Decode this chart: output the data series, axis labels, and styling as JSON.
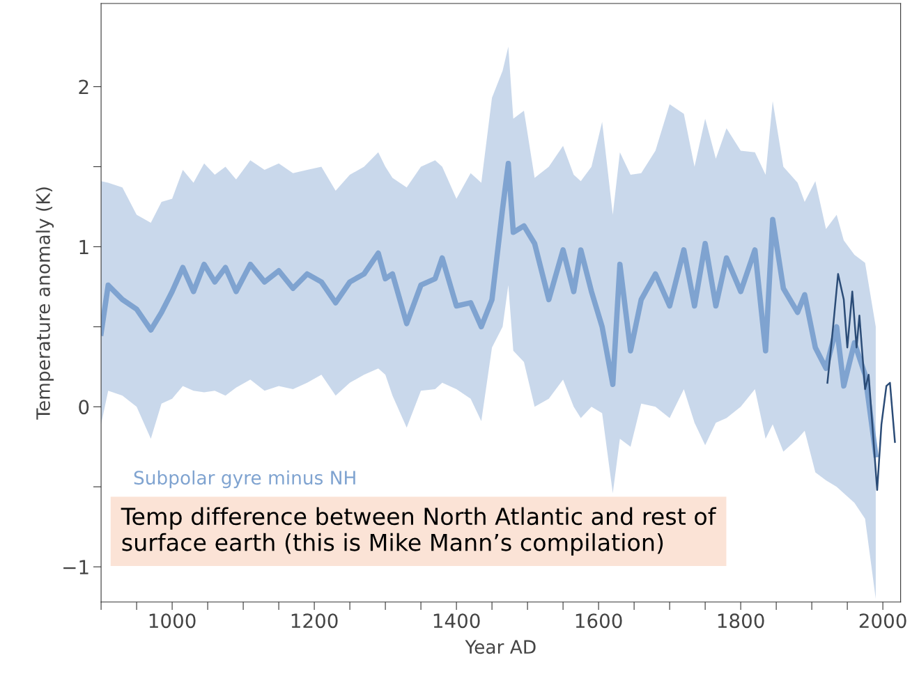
{
  "chart_data": {
    "type": "line",
    "xlabel": "Year AD",
    "ylabel": "Temperature anomaly (K)",
    "xlim": [
      900,
      2025
    ],
    "ylim": [
      -1.22,
      2.52
    ],
    "xticks": [
      {
        "value": 900,
        "label": null
      },
      {
        "value": 950,
        "label": null
      },
      1000,
      {
        "value": 1050,
        "label": null
      },
      {
        "value": 1100,
        "label": null
      },
      {
        "value": 1150,
        "label": null
      },
      1200,
      {
        "value": 1250,
        "label": null
      },
      {
        "value": 1300,
        "label": null
      },
      {
        "value": 1350,
        "label": null
      },
      1400,
      {
        "value": 1450,
        "label": null
      },
      {
        "value": 1500,
        "label": null
      },
      {
        "value": 1550,
        "label": null
      },
      1600,
      {
        "value": 1650,
        "label": null
      },
      {
        "value": 1700,
        "label": null
      },
      {
        "value": 1750,
        "label": null
      },
      1800,
      {
        "value": 1850,
        "label": null
      },
      {
        "value": 1900,
        "label": null
      },
      {
        "value": 1950,
        "label": null
      },
      2000
    ],
    "yticks": [
      {
        "value": -1,
        "label": "−1"
      },
      {
        "value": -0.5,
        "label": null
      },
      0,
      {
        "value": 0.5,
        "label": null
      },
      1,
      {
        "value": 1.5,
        "label": null
      },
      2
    ],
    "grid": false,
    "legend": false,
    "annotations": [
      "Temp difference between North Atlantic and rest of\nsurface earth (this is Mike Mann’s compilation)"
    ],
    "series": [
      {
        "name": "Subpolar gyre minus NH",
        "color": "#7fa3d0",
        "x": [
          900,
          910,
          930,
          950,
          970,
          985,
          1000,
          1015,
          1030,
          1045,
          1060,
          1075,
          1090,
          1110,
          1130,
          1150,
          1170,
          1190,
          1210,
          1230,
          1250,
          1270,
          1290,
          1300,
          1310,
          1330,
          1350,
          1370,
          1380,
          1400,
          1420,
          1435,
          1450,
          1465,
          1473,
          1480,
          1495,
          1510,
          1530,
          1550,
          1565,
          1575,
          1590,
          1605,
          1620,
          1630,
          1645,
          1660,
          1680,
          1700,
          1720,
          1735,
          1750,
          1765,
          1780,
          1800,
          1820,
          1835,
          1845,
          1860,
          1880,
          1890,
          1905,
          1920,
          1935,
          1945,
          1960,
          1975,
          1990
        ],
        "values": [
          0.46,
          0.76,
          0.67,
          0.61,
          0.48,
          0.59,
          0.72,
          0.87,
          0.72,
          0.89,
          0.78,
          0.87,
          0.72,
          0.89,
          0.78,
          0.85,
          0.74,
          0.83,
          0.78,
          0.65,
          0.78,
          0.83,
          0.96,
          0.8,
          0.83,
          0.52,
          0.76,
          0.8,
          0.93,
          0.63,
          0.65,
          0.5,
          0.67,
          1.24,
          1.52,
          1.09,
          1.13,
          1.02,
          0.67,
          0.98,
          0.72,
          0.98,
          0.72,
          0.5,
          0.14,
          0.89,
          0.35,
          0.67,
          0.83,
          0.63,
          0.98,
          0.63,
          1.02,
          0.63,
          0.93,
          0.72,
          0.98,
          0.35,
          1.17,
          0.74,
          0.59,
          0.7,
          0.37,
          0.24,
          0.5,
          0.13,
          0.4,
          0.2,
          -0.3
        ],
        "upper": [
          1.41,
          1.4,
          1.37,
          1.2,
          1.15,
          1.28,
          1.3,
          1.48,
          1.4,
          1.52,
          1.45,
          1.5,
          1.42,
          1.54,
          1.48,
          1.52,
          1.46,
          1.48,
          1.5,
          1.35,
          1.45,
          1.5,
          1.59,
          1.5,
          1.43,
          1.37,
          1.5,
          1.54,
          1.5,
          1.3,
          1.46,
          1.4,
          1.93,
          2.1,
          2.25,
          1.8,
          1.85,
          1.43,
          1.5,
          1.63,
          1.45,
          1.41,
          1.5,
          1.78,
          1.2,
          1.59,
          1.45,
          1.46,
          1.6,
          1.89,
          1.83,
          1.5,
          1.8,
          1.55,
          1.74,
          1.6,
          1.59,
          1.45,
          1.91,
          1.5,
          1.4,
          1.28,
          1.41,
          1.11,
          1.2,
          1.04,
          0.95,
          0.9,
          0.5
        ],
        "lower": [
          -0.11,
          0.1,
          0.07,
          0.0,
          -0.2,
          0.02,
          0.05,
          0.13,
          0.1,
          0.09,
          0.1,
          0.07,
          0.12,
          0.17,
          0.1,
          0.13,
          0.11,
          0.15,
          0.2,
          0.07,
          0.15,
          0.2,
          0.24,
          0.2,
          0.07,
          -0.13,
          0.1,
          0.11,
          0.15,
          0.11,
          0.05,
          -0.09,
          0.37,
          0.5,
          0.76,
          0.35,
          0.28,
          0.0,
          0.05,
          0.17,
          0.0,
          -0.07,
          0.0,
          -0.04,
          -0.54,
          -0.2,
          -0.25,
          0.02,
          0.0,
          -0.07,
          0.11,
          -0.1,
          -0.24,
          -0.1,
          -0.07,
          0.0,
          0.11,
          -0.2,
          -0.11,
          -0.28,
          -0.2,
          -0.15,
          -0.41,
          -0.46,
          -0.5,
          -0.54,
          -0.6,
          -0.7,
          -1.2
        ]
      },
      {
        "color": "#2b4c77",
        "x": [
          1922,
          1930,
          1937,
          1945,
          1950,
          1957,
          1963,
          1967,
          1975,
          1980,
          1992,
          1998,
          2005,
          2010,
          2017
        ],
        "values": [
          0.15,
          0.5,
          0.83,
          0.67,
          0.37,
          0.72,
          0.37,
          0.57,
          0.11,
          0.2,
          -0.52,
          -0.11,
          0.13,
          0.15,
          -0.22
        ]
      }
    ]
  }
}
